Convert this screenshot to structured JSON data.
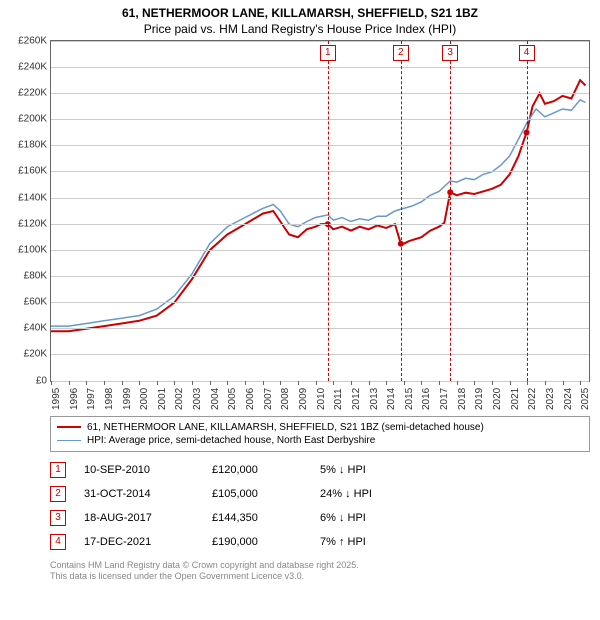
{
  "title_line1": "61, NETHERMOOR LANE, KILLAMARSH, SHEFFIELD, S21 1BZ",
  "title_line2": "Price paid vs. HM Land Registry's House Price Index (HPI)",
  "chart": {
    "type": "line",
    "background_color": "#ffffff",
    "grid_color": "#cccccc",
    "border_color": "#666666",
    "x": {
      "min": 1995,
      "max": 2025.5,
      "ticks": [
        1995,
        1996,
        1997,
        1998,
        1999,
        2000,
        2001,
        2002,
        2003,
        2004,
        2005,
        2006,
        2007,
        2008,
        2009,
        2010,
        2011,
        2012,
        2013,
        2014,
        2015,
        2016,
        2017,
        2018,
        2019,
        2020,
        2021,
        2022,
        2023,
        2024,
        2025
      ],
      "tick_labels": [
        "1995",
        "1996",
        "1997",
        "1998",
        "1999",
        "2000",
        "2001",
        "2002",
        "2003",
        "2004",
        "2005",
        "2006",
        "2007",
        "2008",
        "2009",
        "2010",
        "2011",
        "2012",
        "2013",
        "2014",
        "2015",
        "2016",
        "2017",
        "2018",
        "2019",
        "2020",
        "2021",
        "2022",
        "2023",
        "2024",
        "2025"
      ]
    },
    "y": {
      "min": 0,
      "max": 260000,
      "ticks": [
        0,
        20000,
        40000,
        60000,
        80000,
        100000,
        120000,
        140000,
        160000,
        180000,
        200000,
        220000,
        240000,
        260000
      ],
      "tick_labels": [
        "£0",
        "£20K",
        "£40K",
        "£60K",
        "£80K",
        "£100K",
        "£120K",
        "£140K",
        "£160K",
        "£180K",
        "£200K",
        "£220K",
        "£240K",
        "£260K"
      ]
    },
    "series": [
      {
        "name": "price_paid",
        "color": "#cc0000",
        "width": 2,
        "legend": "61, NETHERMOOR LANE, KILLAMARSH, SHEFFIELD, S21 1BZ (semi-detached house)",
        "points": [
          [
            1995,
            38000
          ],
          [
            1996,
            38000
          ],
          [
            1997,
            40000
          ],
          [
            1998,
            42000
          ],
          [
            1999,
            44000
          ],
          [
            2000,
            46000
          ],
          [
            2001,
            50000
          ],
          [
            2002,
            60000
          ],
          [
            2003,
            78000
          ],
          [
            2004,
            100000
          ],
          [
            2005,
            112000
          ],
          [
            2006,
            120000
          ],
          [
            2007,
            128000
          ],
          [
            2007.6,
            130000
          ],
          [
            2008,
            122000
          ],
          [
            2008.5,
            112000
          ],
          [
            2009,
            110000
          ],
          [
            2009.5,
            116000
          ],
          [
            2010,
            118000
          ],
          [
            2010.3,
            120000
          ],
          [
            2010.7,
            120000
          ],
          [
            2011,
            116000
          ],
          [
            2011.5,
            118000
          ],
          [
            2012,
            115000
          ],
          [
            2012.5,
            118000
          ],
          [
            2013,
            116000
          ],
          [
            2013.5,
            119000
          ],
          [
            2014,
            117000
          ],
          [
            2014.5,
            120000
          ],
          [
            2014.83,
            105000
          ],
          [
            2015,
            105000
          ],
          [
            2015.3,
            107000
          ],
          [
            2016,
            110000
          ],
          [
            2016.5,
            115000
          ],
          [
            2017,
            118000
          ],
          [
            2017.3,
            121000
          ],
          [
            2017.63,
            144350
          ],
          [
            2018,
            142000
          ],
          [
            2018.5,
            144000
          ],
          [
            2019,
            143000
          ],
          [
            2019.5,
            145000
          ],
          [
            2020,
            147000
          ],
          [
            2020.5,
            150000
          ],
          [
            2021,
            158000
          ],
          [
            2021.5,
            172000
          ],
          [
            2021.96,
            190000
          ],
          [
            2022,
            192000
          ],
          [
            2022.3,
            210000
          ],
          [
            2022.7,
            220000
          ],
          [
            2023,
            212000
          ],
          [
            2023.5,
            214000
          ],
          [
            2024,
            218000
          ],
          [
            2024.5,
            216000
          ],
          [
            2025,
            230000
          ],
          [
            2025.3,
            226000
          ]
        ],
        "sale_dots": [
          [
            2010.69,
            120000
          ],
          [
            2014.83,
            105000
          ],
          [
            2017.63,
            144350
          ],
          [
            2021.96,
            190000
          ]
        ]
      },
      {
        "name": "hpi",
        "color": "#6699cc",
        "width": 1.5,
        "legend": "HPI: Average price, semi-detached house, North East Derbyshire",
        "points": [
          [
            1995,
            42000
          ],
          [
            1996,
            42000
          ],
          [
            1997,
            44000
          ],
          [
            1998,
            46000
          ],
          [
            1999,
            48000
          ],
          [
            2000,
            50000
          ],
          [
            2001,
            55000
          ],
          [
            2002,
            65000
          ],
          [
            2003,
            82000
          ],
          [
            2004,
            105000
          ],
          [
            2005,
            118000
          ],
          [
            2006,
            125000
          ],
          [
            2007,
            132000
          ],
          [
            2007.6,
            135000
          ],
          [
            2008,
            130000
          ],
          [
            2008.5,
            120000
          ],
          [
            2009,
            118000
          ],
          [
            2009.5,
            122000
          ],
          [
            2010,
            125000
          ],
          [
            2010.7,
            127000
          ],
          [
            2011,
            123000
          ],
          [
            2011.5,
            125000
          ],
          [
            2012,
            122000
          ],
          [
            2012.5,
            124000
          ],
          [
            2013,
            123000
          ],
          [
            2013.5,
            126000
          ],
          [
            2014,
            126000
          ],
          [
            2014.5,
            130000
          ],
          [
            2015,
            132000
          ],
          [
            2015.5,
            134000
          ],
          [
            2016,
            137000
          ],
          [
            2016.5,
            142000
          ],
          [
            2017,
            145000
          ],
          [
            2017.63,
            153000
          ],
          [
            2018,
            152000
          ],
          [
            2018.5,
            155000
          ],
          [
            2019,
            154000
          ],
          [
            2019.5,
            158000
          ],
          [
            2020,
            160000
          ],
          [
            2020.5,
            165000
          ],
          [
            2021,
            172000
          ],
          [
            2021.5,
            185000
          ],
          [
            2022,
            198000
          ],
          [
            2022.5,
            208000
          ],
          [
            2023,
            202000
          ],
          [
            2023.5,
            205000
          ],
          [
            2024,
            208000
          ],
          [
            2024.5,
            207000
          ],
          [
            2025,
            215000
          ],
          [
            2025.3,
            213000
          ]
        ]
      }
    ],
    "markers": [
      {
        "n": "1",
        "x": 2010.69
      },
      {
        "n": "2",
        "x": 2014.83
      },
      {
        "n": "3",
        "x": 2017.63
      },
      {
        "n": "4",
        "x": 2021.96
      }
    ]
  },
  "events": [
    {
      "n": "1",
      "date": "10-SEP-2010",
      "price": "£120,000",
      "delta": "5% ↓ HPI"
    },
    {
      "n": "2",
      "date": "31-OCT-2014",
      "price": "£105,000",
      "delta": "24% ↓ HPI"
    },
    {
      "n": "3",
      "date": "18-AUG-2017",
      "price": "£144,350",
      "delta": "6% ↓ HPI"
    },
    {
      "n": "4",
      "date": "17-DEC-2021",
      "price": "£190,000",
      "delta": "7% ↑ HPI"
    }
  ],
  "footer_line1": "Contains HM Land Registry data © Crown copyright and database right 2025.",
  "footer_line2": "This data is licensed under the Open Government Licence v3.0."
}
